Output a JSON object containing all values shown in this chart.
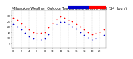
{
  "title": "Milwaukee Weather  Outdoor Temperature vs Wind Chill  (24 Hours)",
  "title_fontsize": 3.5,
  "bg_color": "#ffffff",
  "grid_color": "#aaaaaa",
  "temp_color": "#ff0000",
  "wind_color": "#0000cc",
  "hours": [
    0,
    1,
    2,
    3,
    4,
    5,
    6,
    7,
    8,
    9,
    10,
    11,
    12,
    13,
    14,
    15,
    16,
    17,
    18,
    19,
    20,
    21,
    22,
    23
  ],
  "temp": [
    28,
    26,
    23,
    20,
    17,
    15,
    14,
    14,
    15,
    19,
    23,
    27,
    29,
    28,
    26,
    25,
    22,
    20,
    17,
    15,
    13,
    14,
    15,
    17
  ],
  "wind_chill": [
    22,
    20,
    17,
    14,
    11,
    9,
    8,
    8,
    9,
    13,
    18,
    22,
    24,
    24,
    22,
    20,
    18,
    15,
    12,
    10,
    8,
    9,
    10,
    12
  ],
  "ylim": [
    0,
    35
  ],
  "yticks": [
    5,
    10,
    15,
    20,
    25,
    30
  ],
  "ytick_labels": [
    "5",
    "10",
    "15",
    "20",
    "25",
    "30"
  ],
  "ytick_fontsize": 2.8,
  "xtick_fontsize": 2.5,
  "marker_size": 1.5
}
